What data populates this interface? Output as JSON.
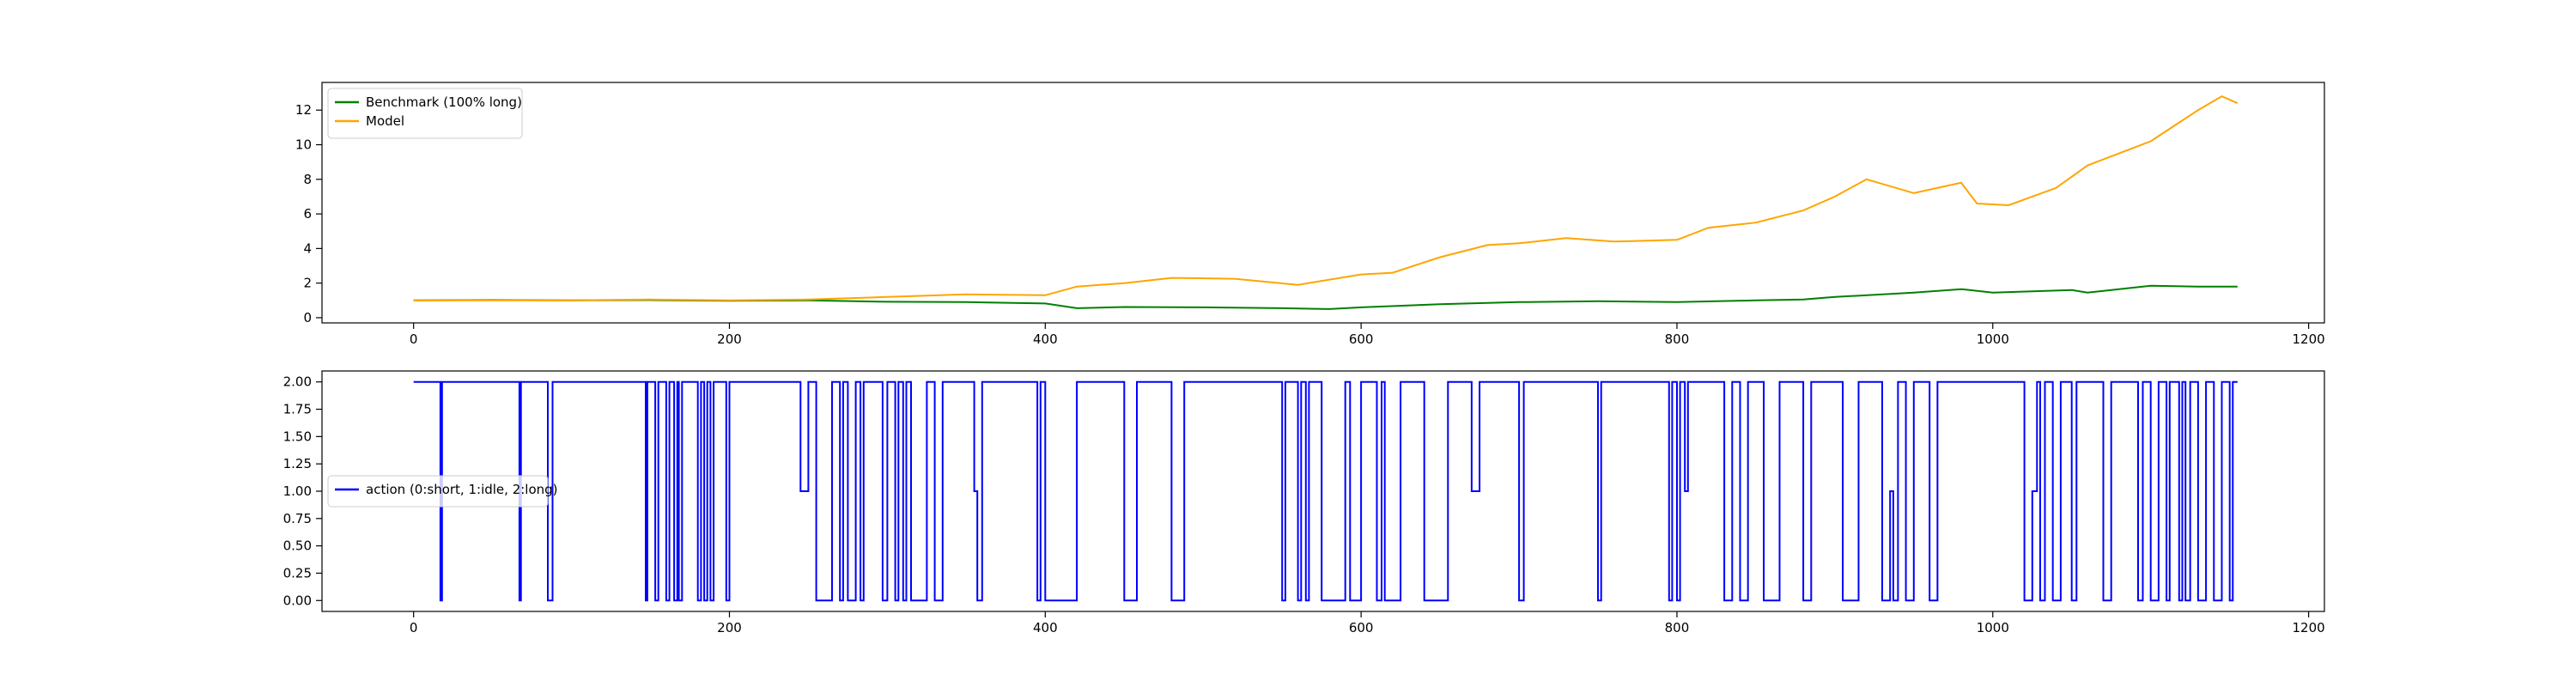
{
  "chart_data": [
    {
      "type": "line",
      "legend_placement": "upper-left",
      "grid": false,
      "xlim": [
        -58,
        1210
      ],
      "ylim": [
        -0.3,
        13.6
      ],
      "x_ticks": [
        0,
        200,
        400,
        600,
        800,
        1000,
        1200
      ],
      "y_ticks": [
        0,
        2,
        4,
        6,
        8,
        10,
        12
      ],
      "x_tick_labels": [
        "0",
        "200",
        "400",
        "600",
        "800",
        "1000",
        "1200"
      ],
      "y_tick_labels": [
        "0",
        "2",
        "4",
        "6",
        "8",
        "10",
        "12"
      ],
      "colors": {
        "benchmark": "#008000",
        "model": "#ffa500"
      },
      "series": [
        {
          "name": "Benchmark (100% long)",
          "color": "#008000",
          "points": [
            [
              0,
              1.0
            ],
            [
              50,
              1.02
            ],
            [
              100,
              1.0
            ],
            [
              150,
              1.02
            ],
            [
              200,
              0.98
            ],
            [
              250,
              1.0
            ],
            [
              300,
              0.92
            ],
            [
              350,
              0.9
            ],
            [
              400,
              0.82
            ],
            [
              420,
              0.55
            ],
            [
              450,
              0.62
            ],
            [
              500,
              0.6
            ],
            [
              550,
              0.55
            ],
            [
              580,
              0.5
            ],
            [
              600,
              0.6
            ],
            [
              650,
              0.78
            ],
            [
              700,
              0.9
            ],
            [
              750,
              0.95
            ],
            [
              800,
              0.9
            ],
            [
              850,
              1.0
            ],
            [
              880,
              1.05
            ],
            [
              900,
              1.2
            ],
            [
              950,
              1.45
            ],
            [
              980,
              1.65
            ],
            [
              1000,
              1.45
            ],
            [
              1050,
              1.6
            ],
            [
              1060,
              1.45
            ],
            [
              1100,
              1.85
            ],
            [
              1130,
              1.8
            ],
            [
              1155,
              1.8
            ]
          ]
        },
        {
          "name": "Model",
          "color": "#ffa500",
          "points": [
            [
              0,
              1.0
            ],
            [
              50,
              1.0
            ],
            [
              100,
              1.0
            ],
            [
              150,
              1.05
            ],
            [
              200,
              1.0
            ],
            [
              250,
              1.05
            ],
            [
              300,
              1.2
            ],
            [
              350,
              1.35
            ],
            [
              400,
              1.3
            ],
            [
              420,
              1.8
            ],
            [
              450,
              2.0
            ],
            [
              480,
              2.3
            ],
            [
              520,
              2.25
            ],
            [
              560,
              1.9
            ],
            [
              600,
              2.5
            ],
            [
              620,
              2.6
            ],
            [
              650,
              3.5
            ],
            [
              680,
              4.2
            ],
            [
              700,
              4.3
            ],
            [
              730,
              4.6
            ],
            [
              760,
              4.4
            ],
            [
              800,
              4.5
            ],
            [
              820,
              5.2
            ],
            [
              850,
              5.5
            ],
            [
              880,
              6.2
            ],
            [
              900,
              7.0
            ],
            [
              920,
              8.0
            ],
            [
              950,
              7.2
            ],
            [
              980,
              7.8
            ],
            [
              990,
              6.6
            ],
            [
              1010,
              6.5
            ],
            [
              1040,
              7.5
            ],
            [
              1060,
              8.8
            ],
            [
              1080,
              9.5
            ],
            [
              1100,
              10.2
            ],
            [
              1130,
              12.0
            ],
            [
              1145,
              12.8
            ],
            [
              1155,
              12.4
            ]
          ]
        }
      ]
    },
    {
      "type": "line",
      "legend_placement": "center-left",
      "grid": false,
      "xlim": [
        -58,
        1210
      ],
      "ylim": [
        -0.1,
        2.1
      ],
      "x_ticks": [
        0,
        200,
        400,
        600,
        800,
        1000,
        1200
      ],
      "y_ticks": [
        0.0,
        0.25,
        0.5,
        0.75,
        1.0,
        1.25,
        1.5,
        1.75,
        2.0
      ],
      "x_tick_labels": [
        "0",
        "200",
        "400",
        "600",
        "800",
        "1000",
        "1200"
      ],
      "y_tick_labels": [
        "0.00",
        "0.25",
        "0.50",
        "0.75",
        "1.00",
        "1.25",
        "1.50",
        "1.75",
        "2.00"
      ],
      "series": [
        {
          "name": "action (0:short, 1:idle, 2:long)",
          "color": "#0000ff",
          "steps": [
            [
              0,
              2
            ],
            [
              17,
              0
            ],
            [
              18,
              2
            ],
            [
              67,
              0
            ],
            [
              68,
              2
            ],
            [
              69,
              2
            ],
            [
              85,
              0
            ],
            [
              88,
              2
            ],
            [
              147,
              0
            ],
            [
              148,
              2
            ],
            [
              153,
              0
            ],
            [
              155,
              2
            ],
            [
              160,
              0
            ],
            [
              162,
              2
            ],
            [
              165,
              0
            ],
            [
              167,
              2
            ],
            [
              168,
              0
            ],
            [
              170,
              2
            ],
            [
              180,
              0
            ],
            [
              182,
              2
            ],
            [
              184,
              0
            ],
            [
              186,
              2
            ],
            [
              188,
              0
            ],
            [
              190,
              2
            ],
            [
              198,
              0
            ],
            [
              200,
              2
            ],
            [
              245,
              1
            ],
            [
              248,
              1
            ],
            [
              250,
              2
            ],
            [
              255,
              0
            ],
            [
              265,
              2
            ],
            [
              270,
              0
            ],
            [
              272,
              2
            ],
            [
              275,
              0
            ],
            [
              280,
              2
            ],
            [
              283,
              0
            ],
            [
              285,
              2
            ],
            [
              297,
              0
            ],
            [
              300,
              2
            ],
            [
              305,
              0
            ],
            [
              307,
              2
            ],
            [
              310,
              0
            ],
            [
              312,
              2
            ],
            [
              315,
              0
            ],
            [
              325,
              2
            ],
            [
              330,
              0
            ],
            [
              335,
              2
            ],
            [
              355,
              1
            ],
            [
              357,
              0
            ],
            [
              360,
              2
            ],
            [
              395,
              0
            ],
            [
              397,
              2
            ],
            [
              400,
              0
            ],
            [
              420,
              2
            ],
            [
              450,
              0
            ],
            [
              458,
              2
            ],
            [
              480,
              0
            ],
            [
              488,
              2
            ],
            [
              550,
              0
            ],
            [
              552,
              2
            ],
            [
              560,
              0
            ],
            [
              562,
              2
            ],
            [
              565,
              0
            ],
            [
              567,
              2
            ],
            [
              575,
              0
            ],
            [
              590,
              2
            ],
            [
              593,
              0
            ],
            [
              600,
              2
            ],
            [
              610,
              0
            ],
            [
              613,
              2
            ],
            [
              615,
              0
            ],
            [
              625,
              2
            ],
            [
              640,
              0
            ],
            [
              655,
              2
            ],
            [
              670,
              1
            ],
            [
              675,
              2
            ],
            [
              700,
              0
            ],
            [
              703,
              2
            ],
            [
              750,
              0
            ],
            [
              752,
              2
            ],
            [
              795,
              0
            ],
            [
              797,
              2
            ],
            [
              800,
              0
            ],
            [
              802,
              2
            ],
            [
              805,
              1
            ],
            [
              807,
              2
            ],
            [
              830,
              0
            ],
            [
              835,
              2
            ],
            [
              840,
              0
            ],
            [
              845,
              2
            ],
            [
              855,
              0
            ],
            [
              865,
              2
            ],
            [
              880,
              0
            ],
            [
              885,
              2
            ],
            [
              905,
              0
            ],
            [
              915,
              2
            ],
            [
              930,
              0
            ],
            [
              935,
              1
            ],
            [
              937,
              0
            ],
            [
              940,
              2
            ],
            [
              945,
              0
            ],
            [
              950,
              2
            ],
            [
              960,
              0
            ],
            [
              965,
              2
            ],
            [
              1020,
              0
            ],
            [
              1025,
              1
            ],
            [
              1028,
              2
            ],
            [
              1030,
              0
            ],
            [
              1033,
              2
            ],
            [
              1038,
              0
            ],
            [
              1043,
              2
            ],
            [
              1050,
              0
            ],
            [
              1053,
              2
            ],
            [
              1070,
              0
            ],
            [
              1075,
              2
            ],
            [
              1092,
              0
            ],
            [
              1095,
              2
            ],
            [
              1100,
              0
            ],
            [
              1105,
              2
            ],
            [
              1110,
              0
            ],
            [
              1112,
              2
            ],
            [
              1118,
              0
            ],
            [
              1120,
              2
            ],
            [
              1122,
              0
            ],
            [
              1125,
              2
            ],
            [
              1130,
              0
            ],
            [
              1135,
              2
            ],
            [
              1140,
              0
            ],
            [
              1145,
              2
            ],
            [
              1150,
              0
            ],
            [
              1152,
              2
            ],
            [
              1155,
              2
            ]
          ]
        }
      ]
    }
  ]
}
